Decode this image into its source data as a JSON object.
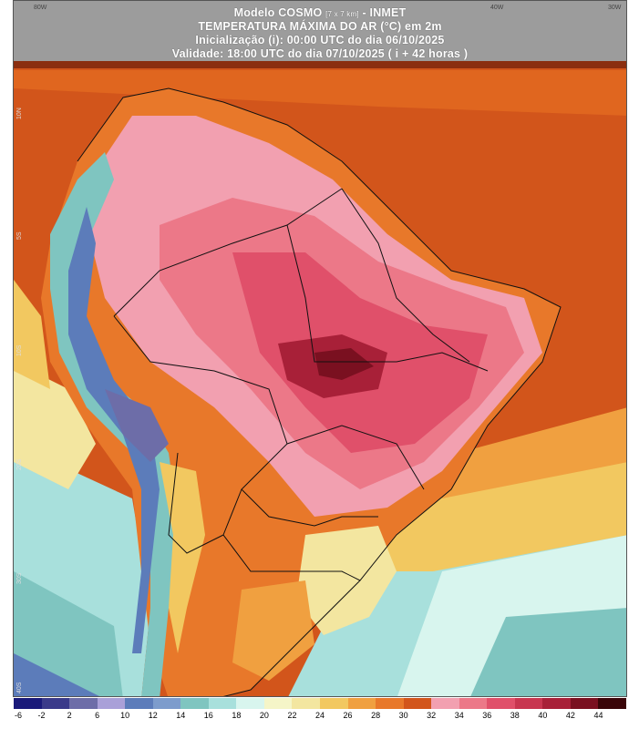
{
  "title": {
    "line1": "Modelo COSMO",
    "line1_res": "[7 x 7 km]",
    "line1_org": "- INMET",
    "line2": "TEMPERATURA MÁXIMA DO AR (°C) em 2m",
    "line3": "Inicialização (i): 00:00 UTC do dia 06/10/2025",
    "line4": "Validade: 18:00 UTC do dia 07/10/2025 ( i + 42 horas )"
  },
  "longitude_labels": [
    "80W",
    "40W",
    "30W"
  ],
  "latitude_labels": [
    "10N",
    "5S",
    "10S",
    "20S",
    "30S",
    "40S"
  ],
  "legend": {
    "ticks": [
      "-6",
      "-2",
      "2",
      "6",
      "10",
      "12",
      "14",
      "16",
      "18",
      "20",
      "22",
      "24",
      "26",
      "28",
      "30",
      "32",
      "34",
      "36",
      "38",
      "40",
      "42",
      "44"
    ],
    "colors": [
      "#1a1a7a",
      "#3a3a8a",
      "#6d6da8",
      "#a9a0d8",
      "#5c7cba",
      "#7d9ccc",
      "#7fc5c0",
      "#a8e0dc",
      "#d8f5ee",
      "#f5f5c8",
      "#f3e6a0",
      "#f2c860",
      "#f0a040",
      "#e8782a",
      "#d2551b",
      "#f2a0b0",
      "#ec7888",
      "#e0506a",
      "#c83650",
      "#a82038",
      "#7a1020",
      "#3a0508"
    ]
  }
}
